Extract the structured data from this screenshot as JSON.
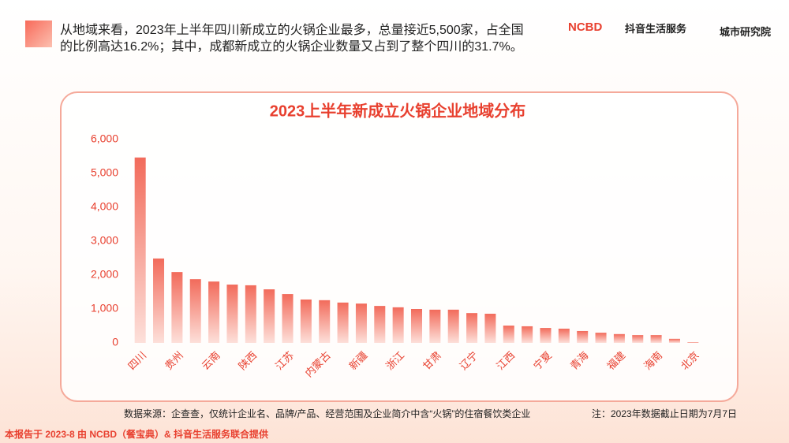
{
  "header": {
    "text": "从地域来看，2023年上半年四川新成立的火锅企业最多，总量接近5,500家，占全国的比例高达16.2%；其中，成都新成立的火锅企业数量又占到了整个四川的31.7%。",
    "logos": [
      "NCBD",
      "抖音生活服务",
      "城市研究院"
    ]
  },
  "chart_data": {
    "type": "bar",
    "title": "2023上半年新成立火锅企业地域分布",
    "color": "#f26b5b",
    "categories": [
      "四川",
      null,
      "贵州",
      null,
      "云南",
      null,
      "陕西",
      null,
      "江苏",
      null,
      "内蒙古",
      null,
      "新疆",
      null,
      "浙江",
      null,
      "甘肃",
      null,
      "辽宁",
      null,
      "江西",
      null,
      "宁夏",
      null,
      "青海",
      null,
      "福建",
      null,
      "海南",
      null,
      "北京"
    ],
    "values": [
      5470,
      2490,
      2090,
      1880,
      1810,
      1720,
      1700,
      1580,
      1440,
      1280,
      1260,
      1190,
      1160,
      1090,
      1050,
      1000,
      980,
      980,
      880,
      860,
      510,
      490,
      440,
      420,
      350,
      300,
      260,
      230,
      230,
      120,
      20
    ],
    "ylim": [
      0,
      6000
    ],
    "yticks": [
      0,
      {
        "value": 1000,
        "label": "1,000"
      },
      {
        "value": 2000,
        "label": "2,000"
      },
      {
        "value": 3000,
        "label": "3,000"
      },
      {
        "value": 4000,
        "label": "4,000"
      },
      {
        "value": 5000,
        "label": "5,000"
      },
      {
        "value": 6000,
        "label": "6,000"
      }
    ],
    "grid": false
  },
  "source": "数据来源：企查查，仅统计企业名、品牌/产品、经营范围及企业简介中含“火锅”的住宿餐饮类企业",
  "note": "注：2023年数据截止日期为7月7日",
  "footer": "本报告于 2023-8 由 NCBD（餐宝典）& 抖音生活服务联合提供"
}
